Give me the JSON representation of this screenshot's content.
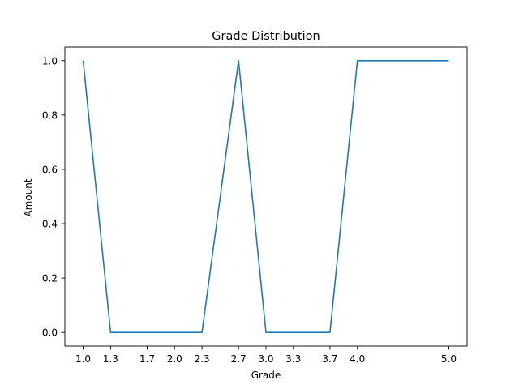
{
  "chart_data": {
    "type": "line",
    "title": "Grade Distribution",
    "xlabel": "Grade",
    "ylabel": "Amount",
    "x": [
      1.0,
      1.3,
      1.7,
      2.0,
      2.3,
      2.7,
      3.0,
      3.3,
      3.7,
      4.0,
      5.0
    ],
    "series": [
      {
        "values": [
          1,
          0,
          0,
          0,
          0,
          1,
          0,
          0,
          0,
          1,
          1
        ],
        "color": "#1f77b4"
      }
    ],
    "x_ticks": [
      "1.0",
      "1.3",
      "1.7",
      "2.0",
      "2.3",
      "2.7",
      "3.0",
      "3.3",
      "3.7",
      "4.0",
      "5.0"
    ],
    "y_ticks": [
      "0.0",
      "0.2",
      "0.4",
      "0.6",
      "0.8",
      "1.0"
    ],
    "xlim": [
      0.8,
      5.2
    ],
    "ylim": [
      -0.05,
      1.05
    ],
    "grid": false,
    "legend": "none"
  }
}
